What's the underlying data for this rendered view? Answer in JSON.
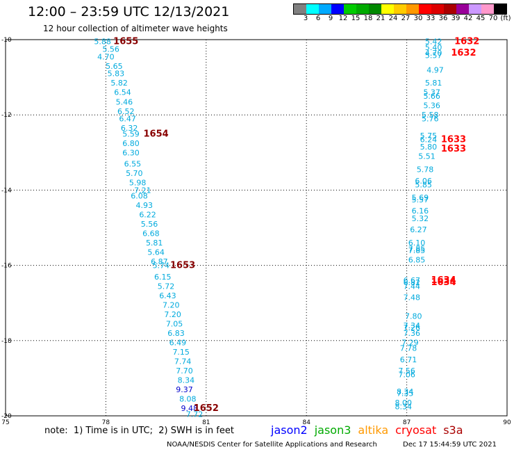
{
  "header": {
    "title": "12:00 – 23:59 UTC 12/13/2021",
    "subtitle": "12 hour collection of altimeter wave heights"
  },
  "color_scale": {
    "labels": [
      "3",
      "6",
      "9",
      "12",
      "15",
      "18",
      "21",
      "24",
      "27",
      "30",
      "33",
      "36",
      "39",
      "42",
      "45",
      "70",
      "(ft)"
    ],
    "colors": [
      "#808080",
      "#00ffff",
      "#00aaff",
      "#0000ff",
      "#00cc00",
      "#00aa00",
      "#008800",
      "#ffff00",
      "#ffcc00",
      "#ff9900",
      "#ff0000",
      "#dd0000",
      "#aa0000",
      "#990099",
      "#cc99ff",
      "#ff99cc",
      "#000000"
    ]
  },
  "footer": {
    "note": "note:  1) Time is in UTC;  2) SWH is in feet",
    "satellites": [
      {
        "name": "jason2",
        "color": "#0000ff"
      },
      {
        "name": "jason3",
        "color": "#00aa00"
      },
      {
        "name": "altika",
        "color": "#ff9900"
      },
      {
        "name": "cryosat",
        "color": "#ff0000"
      },
      {
        "name": "s3a",
        "color": "#aa0000"
      }
    ],
    "credit": "NOAA/NESDIS Center for Satellite Applications and Research",
    "date": "Dec 17 15:44:59 UTC 2021"
  },
  "chart_data": {
    "type": "scatter",
    "xlim": [
      75,
      90
    ],
    "ylim": [
      -20,
      -10
    ],
    "x_ticks": [
      "75",
      "78",
      "81",
      "84",
      "87",
      "90"
    ],
    "y_ticks": [
      "-10",
      "-12",
      "-14",
      "-16",
      "-18",
      "-20"
    ],
    "grid": true,
    "track_a": {
      "color": "#00aadd",
      "points": [
        [
          "5.88",
          77.9,
          -10.05
        ],
        [
          "5.56",
          78.15,
          -10.25
        ],
        [
          "4.70",
          78.0,
          -10.45
        ],
        [
          "5.65",
          78.25,
          -10.7
        ],
        [
          "5.83",
          78.3,
          -10.9
        ],
        [
          "5.82",
          78.4,
          -11.15
        ],
        [
          "6.54",
          78.5,
          -11.4
        ],
        [
          "5.46",
          78.55,
          -11.65
        ],
        [
          "6.52",
          78.6,
          -11.9
        ],
        [
          "6.47",
          78.65,
          -12.1
        ],
        [
          "6.32",
          78.7,
          -12.35
        ],
        [
          "5.59",
          78.75,
          -12.5
        ],
        [
          "6.80",
          78.75,
          -12.75
        ],
        [
          "6.30",
          78.75,
          -13.0
        ],
        [
          "6.55",
          78.8,
          -13.3
        ],
        [
          "5.70",
          78.85,
          -13.55
        ],
        [
          "5.98",
          78.95,
          -13.8
        ],
        [
          "7.21",
          79.1,
          -14.0
        ],
        [
          "6.08",
          79.0,
          -14.15
        ],
        [
          "4.93",
          79.15,
          -14.4
        ],
        [
          "6.22",
          79.25,
          -14.65
        ],
        [
          "5.56",
          79.3,
          -14.9
        ],
        [
          "6.68",
          79.35,
          -15.15
        ],
        [
          "5.81",
          79.45,
          -15.4
        ],
        [
          "5.64",
          79.5,
          -15.65
        ],
        [
          "6.87",
          79.6,
          -15.9
        ],
        [
          "5.74",
          79.65,
          -16.0
        ],
        [
          "6.15",
          79.7,
          -16.3
        ],
        [
          "5.72",
          79.8,
          -16.55
        ],
        [
          "6.43",
          79.85,
          -16.8
        ],
        [
          "7.20",
          79.95,
          -17.05
        ],
        [
          "7.20",
          80.0,
          -17.3
        ],
        [
          "7.05",
          80.05,
          -17.55
        ],
        [
          "6.83",
          80.1,
          -17.8
        ],
        [
          "6.49",
          80.15,
          -18.05
        ],
        [
          "7.15",
          80.25,
          -18.3
        ],
        [
          "7.74",
          80.3,
          -18.55
        ],
        [
          "7.70",
          80.35,
          -18.8
        ],
        [
          "8.34",
          80.4,
          -19.05
        ],
        [
          "8.08",
          80.45,
          -19.55
        ],
        [
          "7.72",
          80.65,
          -19.95
        ]
      ],
      "dark_points": [
        [
          "9.37",
          80.35,
          -19.3
        ],
        [
          "9.48",
          80.5,
          -19.8
        ]
      ],
      "times": [
        [
          "1655",
          78.6,
          -10.05
        ],
        [
          "1654",
          79.5,
          -12.5
        ],
        [
          "1653",
          80.3,
          -16.0
        ],
        [
          "1652",
          81.0,
          -19.8
        ]
      ],
      "time_color": "#880000"
    },
    "track_b": {
      "color": "#00aadd",
      "points": [
        [
          "5.42",
          87.8,
          -10.05
        ],
        [
          "5.40",
          87.8,
          -10.2
        ],
        [
          "4.70",
          87.8,
          -10.35
        ],
        [
          "5.57",
          87.8,
          -10.42
        ],
        [
          "4.97",
          87.85,
          -10.8
        ],
        [
          "5.81",
          87.8,
          -11.15
        ],
        [
          "5.37",
          87.75,
          -11.4
        ],
        [
          "5.66",
          87.75,
          -11.5
        ],
        [
          "5.36",
          87.75,
          -11.75
        ],
        [
          "5.58",
          87.7,
          -12.0
        ],
        [
          "5.76",
          87.7,
          -12.1
        ],
        [
          "5.75",
          87.65,
          -12.55
        ],
        [
          "6.24",
          87.65,
          -12.65
        ],
        [
          "5.80",
          87.65,
          -12.85
        ],
        [
          "5.51",
          87.6,
          -13.1
        ],
        [
          "5.78",
          87.55,
          -13.45
        ],
        [
          "6.06",
          87.5,
          -13.75
        ],
        [
          "5.85",
          87.5,
          -13.85
        ],
        [
          "5.69",
          87.4,
          -14.2
        ],
        [
          "5.57",
          87.4,
          -14.25
        ],
        [
          "6.16",
          87.4,
          -14.55
        ],
        [
          "5.32",
          87.4,
          -14.75
        ],
        [
          "6.27",
          87.35,
          -15.05
        ],
        [
          "6.10",
          87.3,
          -15.4
        ],
        [
          "7.85",
          87.3,
          -15.55
        ],
        [
          "7.85",
          87.3,
          -15.6
        ],
        [
          "6.85",
          87.3,
          -15.85
        ],
        [
          "6.67",
          87.15,
          -16.4
        ],
        [
          "6.82",
          87.15,
          -16.45
        ],
        [
          "7.44",
          87.15,
          -16.55
        ],
        [
          "7.48",
          87.15,
          -16.85
        ],
        [
          "7.80",
          87.2,
          -17.35
        ],
        [
          "7.34",
          87.15,
          -17.6
        ],
        [
          "7.26",
          87.15,
          -17.65
        ],
        [
          "7.36",
          87.15,
          -17.8
        ],
        [
          "7.29",
          87.1,
          -18.05
        ],
        [
          "7.78",
          87.05,
          -18.2
        ],
        [
          "6.71",
          87.05,
          -18.5
        ],
        [
          "7.56",
          87.0,
          -18.8
        ],
        [
          "7.06",
          87.0,
          -18.9
        ],
        [
          "8.34",
          86.95,
          -19.35
        ],
        [
          "7.35",
          86.95,
          -19.4
        ],
        [
          "8.00",
          86.9,
          -19.65
        ],
        [
          "8.34",
          86.9,
          -19.75
        ]
      ],
      "times": [
        [
          "1632",
          88.8,
          -10.05
        ],
        [
          "1632",
          88.7,
          -10.35
        ],
        [
          "1633",
          88.4,
          -12.65
        ],
        [
          "1633",
          88.4,
          -12.9
        ],
        [
          "1634",
          88.1,
          -16.4
        ],
        [
          "1634",
          88.1,
          -16.45
        ]
      ],
      "time_color": "#ff0000"
    }
  }
}
